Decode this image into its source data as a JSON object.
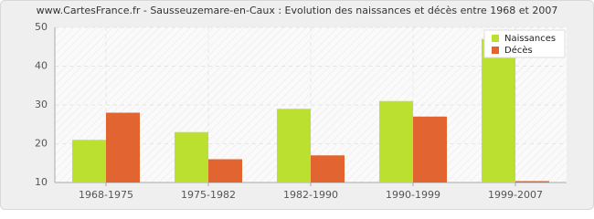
{
  "chart_data": {
    "type": "bar",
    "title": "www.CartesFrance.fr - Sausseuzemare-en-Caux : Evolution des naissances et décès entre 1968 et 2007",
    "categories": [
      "1968-1975",
      "1975-1982",
      "1982-1990",
      "1990-1999",
      "1999-2007"
    ],
    "series": [
      {
        "name": "Naissances",
        "color": "#bbe02f",
        "values": [
          21,
          23,
          29,
          31,
          47
        ]
      },
      {
        "name": "Décès",
        "color": "#e26531",
        "values": [
          28,
          16,
          17,
          27,
          10
        ]
      }
    ],
    "ylim": [
      10,
      50
    ],
    "yticks": [
      10,
      20,
      30,
      40,
      50
    ],
    "grid": true,
    "legend": "top-right"
  }
}
